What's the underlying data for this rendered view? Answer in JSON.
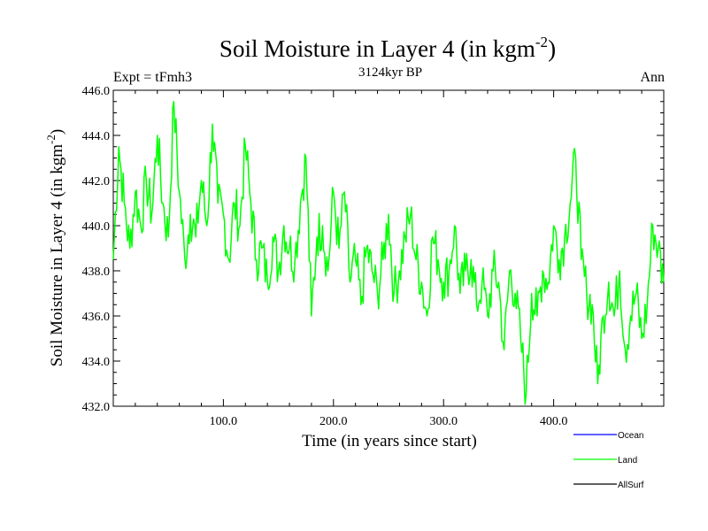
{
  "chart_data": {
    "type": "line",
    "title_main": "Soil Moisture in Layer 4 (in kgm",
    "title_sup": "-2",
    "title_close": ")",
    "subtitle": "3124kyr BP",
    "left_label": "Expt = tFmh3",
    "right_label": "Ann",
    "xlabel": "Time (in years since start)",
    "ylabel_main": "Soil Moisture in Layer 4 (in kgm",
    "ylabel_sup": "-2",
    "ylabel_close": ")",
    "xlim": [
      0,
      500
    ],
    "ylim": [
      432,
      446
    ],
    "x_ticks": [
      100,
      200,
      300,
      400
    ],
    "x_tick_labels": [
      "100.0",
      "200.0",
      "300.0",
      "400.0"
    ],
    "y_ticks": [
      432,
      434,
      436,
      438,
      440,
      442,
      444,
      446
    ],
    "y_tick_labels": [
      "432.0",
      "434.0",
      "436.0",
      "438.0",
      "440.0",
      "442.0",
      "444.0",
      "446.0"
    ],
    "legend": [
      {
        "name": "Ocean",
        "color": "#0000ff"
      },
      {
        "name": "Land",
        "color": "#00ff00"
      },
      {
        "name": "AllSurf",
        "color": "#000000"
      }
    ],
    "series": [
      {
        "name": "Land",
        "color": "#00ff00",
        "x": [
          0,
          5,
          10,
          15,
          20,
          25,
          30,
          35,
          40,
          45,
          50,
          55,
          60,
          65,
          70,
          75,
          80,
          85,
          90,
          95,
          100,
          105,
          110,
          115,
          120,
          125,
          130,
          135,
          140,
          145,
          150,
          155,
          160,
          165,
          170,
          175,
          180,
          185,
          190,
          195,
          200,
          205,
          210,
          215,
          220,
          225,
          230,
          235,
          240,
          245,
          250,
          255,
          260,
          265,
          270,
          275,
          280,
          285,
          290,
          295,
          300,
          305,
          310,
          315,
          320,
          325,
          330,
          335,
          340,
          345,
          350,
          355,
          360,
          365,
          370,
          375,
          380,
          385,
          390,
          395,
          400,
          405,
          410,
          415,
          420,
          425,
          430,
          435,
          440,
          445,
          450,
          455,
          460,
          465,
          470,
          475,
          480,
          485,
          490,
          495,
          500
        ],
        "values": [
          438.5,
          443.5,
          441.0,
          439.0,
          441.5,
          440.0,
          442.0,
          440.5,
          444.0,
          441.0,
          439.5,
          445.5,
          441.5,
          438.5,
          440.5,
          439.5,
          442.0,
          440.0,
          444.5,
          441.0,
          440.5,
          438.5,
          441.0,
          440.0,
          443.5,
          441.0,
          438.5,
          439.0,
          437.5,
          439.5,
          438.0,
          440.0,
          439.0,
          438.5,
          441.0,
          443.0,
          436.0,
          439.5,
          440.0,
          438.0,
          441.5,
          439.0,
          441.5,
          437.5,
          438.5,
          436.5,
          439.0,
          438.0,
          437.0,
          438.5,
          440.5,
          437.0,
          438.0,
          439.5,
          440.5,
          438.5,
          437.5,
          436.0,
          439.5,
          438.5,
          437.5,
          438.0,
          440.0,
          437.0,
          438.0,
          438.5,
          436.5,
          437.5,
          436.0,
          438.0,
          437.5,
          434.5,
          438.0,
          437.0,
          435.0,
          432.5,
          437.0,
          436.0,
          438.0,
          437.5,
          440.0,
          438.5,
          439.5,
          441.0,
          443.0,
          438.5,
          437.0,
          436.5,
          433.0,
          436.0,
          437.5,
          436.0,
          438.0,
          434.5,
          436.0,
          437.0,
          435.0,
          436.5,
          440.0,
          439.0,
          437.5
        ]
      }
    ]
  }
}
